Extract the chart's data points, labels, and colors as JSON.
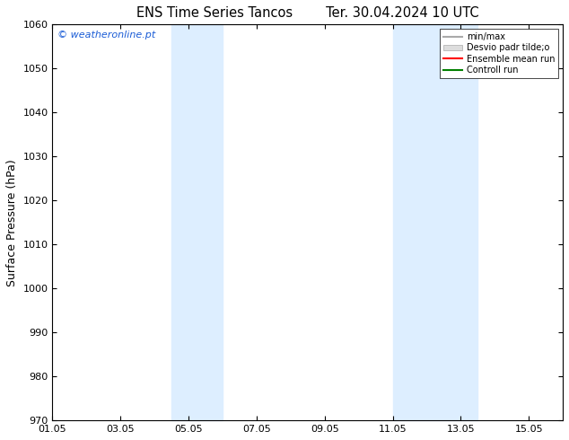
{
  "title_left": "ENS Time Series Tancos",
  "title_right": "Ter. 30.04.2024 10 UTC",
  "ylabel": "Surface Pressure (hPa)",
  "ylim": [
    970,
    1060
  ],
  "yticks": [
    970,
    980,
    990,
    1000,
    1010,
    1020,
    1030,
    1040,
    1050,
    1060
  ],
  "xlim": [
    0,
    15
  ],
  "xtick_labels": [
    "01.05",
    "03.05",
    "05.05",
    "07.05",
    "09.05",
    "11.05",
    "13.05",
    "15.05"
  ],
  "xtick_positions": [
    0,
    2,
    4,
    6,
    8,
    10,
    12,
    14
  ],
  "shade_regions": [
    {
      "xstart": 3.5,
      "xend": 5.0,
      "color": "#ddeeff"
    },
    {
      "xstart": 10.0,
      "xend": 12.5,
      "color": "#ddeeff"
    }
  ],
  "watermark": "© weatheronline.pt",
  "legend_items": [
    {
      "label": "min/max",
      "color": "#aaaaaa",
      "lw": 1.5,
      "type": "line"
    },
    {
      "label": "Desvio padr tilde;o",
      "facecolor": "#dddddd",
      "edgecolor": "#aaaaaa",
      "type": "patch"
    },
    {
      "label": "Ensemble mean run",
      "color": "red",
      "lw": 1.5,
      "type": "line"
    },
    {
      "label": "Controll run",
      "color": "green",
      "lw": 1.5,
      "type": "line"
    }
  ],
  "background_color": "#ffffff",
  "plot_bg_color": "#ffffff",
  "title_fontsize": 10.5,
  "tick_fontsize": 8,
  "ylabel_fontsize": 9,
  "watermark_color": "#1a5cd6",
  "watermark_fontsize": 8
}
